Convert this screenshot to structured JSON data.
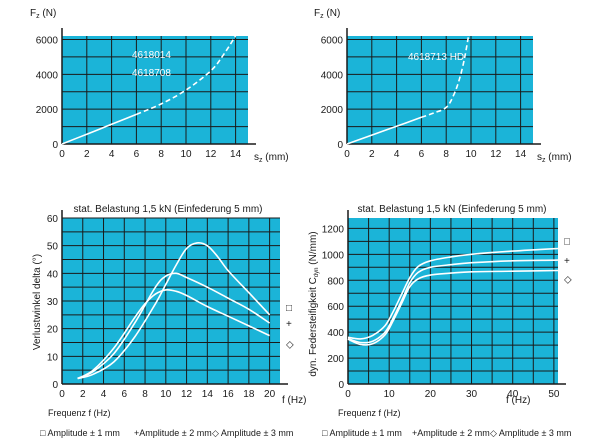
{
  "colors": {
    "plot_bg": "#1bb4d8",
    "grid": "#1a1a1a",
    "curve": "#ffffff",
    "text": "#1a1a1a"
  },
  "chart_data": [
    {
      "type": "line",
      "xlabel": "s_z (mm)",
      "ylabel": "F_z (N)",
      "x_ticks": [
        "0",
        "2",
        "4",
        "6",
        "8",
        "10",
        "12",
        "14"
      ],
      "y_ticks": [
        "0",
        "2000",
        "4000",
        "6000"
      ],
      "xlim": [
        0,
        15
      ],
      "ylim": [
        0,
        6200
      ],
      "annotations": [
        "4618014",
        "4618708"
      ],
      "series": [
        {
          "style": "solid",
          "x": [
            0,
            2,
            4,
            6
          ],
          "y": [
            0,
            560,
            1130,
            1700
          ]
        },
        {
          "style": "dashed",
          "x": [
            6,
            8,
            10,
            12,
            13,
            14
          ],
          "y": [
            1700,
            2300,
            3100,
            4200,
            5100,
            6200
          ]
        }
      ]
    },
    {
      "type": "line",
      "xlabel": "s_z (mm)",
      "ylabel": "F_z (N)",
      "x_ticks": [
        "0",
        "2",
        "4",
        "6",
        "8",
        "10",
        "12",
        "14"
      ],
      "y_ticks": [
        "0",
        "2000",
        "4000",
        "6000"
      ],
      "xlim": [
        0,
        15
      ],
      "ylim": [
        0,
        6200
      ],
      "annotations": [
        "4618713 HD"
      ],
      "series": [
        {
          "style": "solid",
          "x": [
            0,
            2,
            4,
            6
          ],
          "y": [
            0,
            510,
            1020,
            1530
          ]
        },
        {
          "style": "dashed",
          "x": [
            6,
            7,
            8,
            8.6,
            9.1,
            9.5,
            9.8
          ],
          "y": [
            1530,
            1780,
            2100,
            2800,
            3800,
            5000,
            6200
          ]
        }
      ]
    },
    {
      "type": "line",
      "title": "stat. Belastung 1,5 kN (Einfederung 5 mm)",
      "xlabel": "f (Hz)",
      "ylabel": "Verlustwinkel delta (°)",
      "x_caption": "Frequenz f (Hz)",
      "x_ticks": [
        "0",
        "2",
        "4",
        "6",
        "8",
        "10",
        "12",
        "14",
        "16",
        "18",
        "20"
      ],
      "y_ticks": [
        "0",
        "10",
        "20",
        "30",
        "40",
        "50",
        "60"
      ],
      "xlim": [
        0,
        21
      ],
      "ylim": [
        0,
        60
      ],
      "markers": [
        "□",
        "+",
        "◇"
      ],
      "series": [
        {
          "x": [
            1.5,
            3,
            5,
            7,
            9,
            10,
            11,
            12,
            13,
            14,
            15,
            16,
            18,
            20
          ],
          "y": [
            2,
            3.5,
            8,
            17,
            29,
            36,
            43,
            49,
            51,
            50,
            46,
            41,
            33,
            25
          ]
        },
        {
          "x": [
            1.5,
            3,
            5,
            7,
            9,
            10,
            11,
            12,
            14,
            16,
            18,
            20
          ],
          "y": [
            2,
            4.5,
            11,
            22,
            35,
            39,
            40,
            38.5,
            35,
            31,
            27,
            22
          ]
        },
        {
          "x": [
            1.5,
            3,
            5,
            7,
            8,
            9,
            10,
            11,
            12,
            14,
            16,
            18,
            20
          ],
          "y": [
            2,
            5,
            13,
            24,
            29,
            32.5,
            34,
            33.5,
            32,
            28,
            24.5,
            21,
            17.5
          ]
        }
      ]
    },
    {
      "type": "line",
      "title": "stat. Belastung 1,5 kN (Einfederung 5 mm)",
      "xlabel": "f (Hz)",
      "ylabel": "dyn. Federsteifigkeit C_dyn (N/mm)",
      "x_caption": "Frequenz f (Hz)",
      "x_ticks": [
        "0",
        "10",
        "20",
        "30",
        "40",
        "50"
      ],
      "y_ticks": [
        "0",
        "200",
        "400",
        "600",
        "800",
        "1000",
        "1200"
      ],
      "xlim": [
        0,
        51
      ],
      "ylim": [
        0,
        1280
      ],
      "markers": [
        "□",
        "+",
        "◇"
      ],
      "series": [
        {
          "x": [
            0,
            3,
            6,
            9,
            11,
            13,
            15,
            17,
            20,
            25,
            30,
            40,
            51
          ],
          "y": [
            360,
            348,
            375,
            450,
            560,
            690,
            820,
            905,
            950,
            980,
            1000,
            1025,
            1045
          ]
        },
        {
          "x": [
            0,
            3,
            6,
            9,
            11,
            13,
            15,
            17,
            20,
            25,
            30,
            40,
            51
          ],
          "y": [
            350,
            320,
            330,
            400,
            510,
            640,
            780,
            860,
            900,
            920,
            935,
            950,
            955
          ]
        },
        {
          "x": [
            0,
            3,
            6,
            9,
            11,
            13,
            15,
            17,
            20,
            25,
            30,
            40,
            51
          ],
          "y": [
            345,
            305,
            310,
            380,
            490,
            620,
            750,
            810,
            840,
            855,
            865,
            870,
            875
          ]
        }
      ]
    }
  ],
  "legend": {
    "left": [
      "□ Amplitude  ± 1 mm",
      "+Amplitude  ± 2 mm",
      "◇ Amplitude  ± 3 mm"
    ],
    "right": [
      "□ Amplitude  ± 1 mm",
      "+Amplitude  ± 2 mm",
      "◇ Amplitude  ± 3 mm"
    ]
  }
}
